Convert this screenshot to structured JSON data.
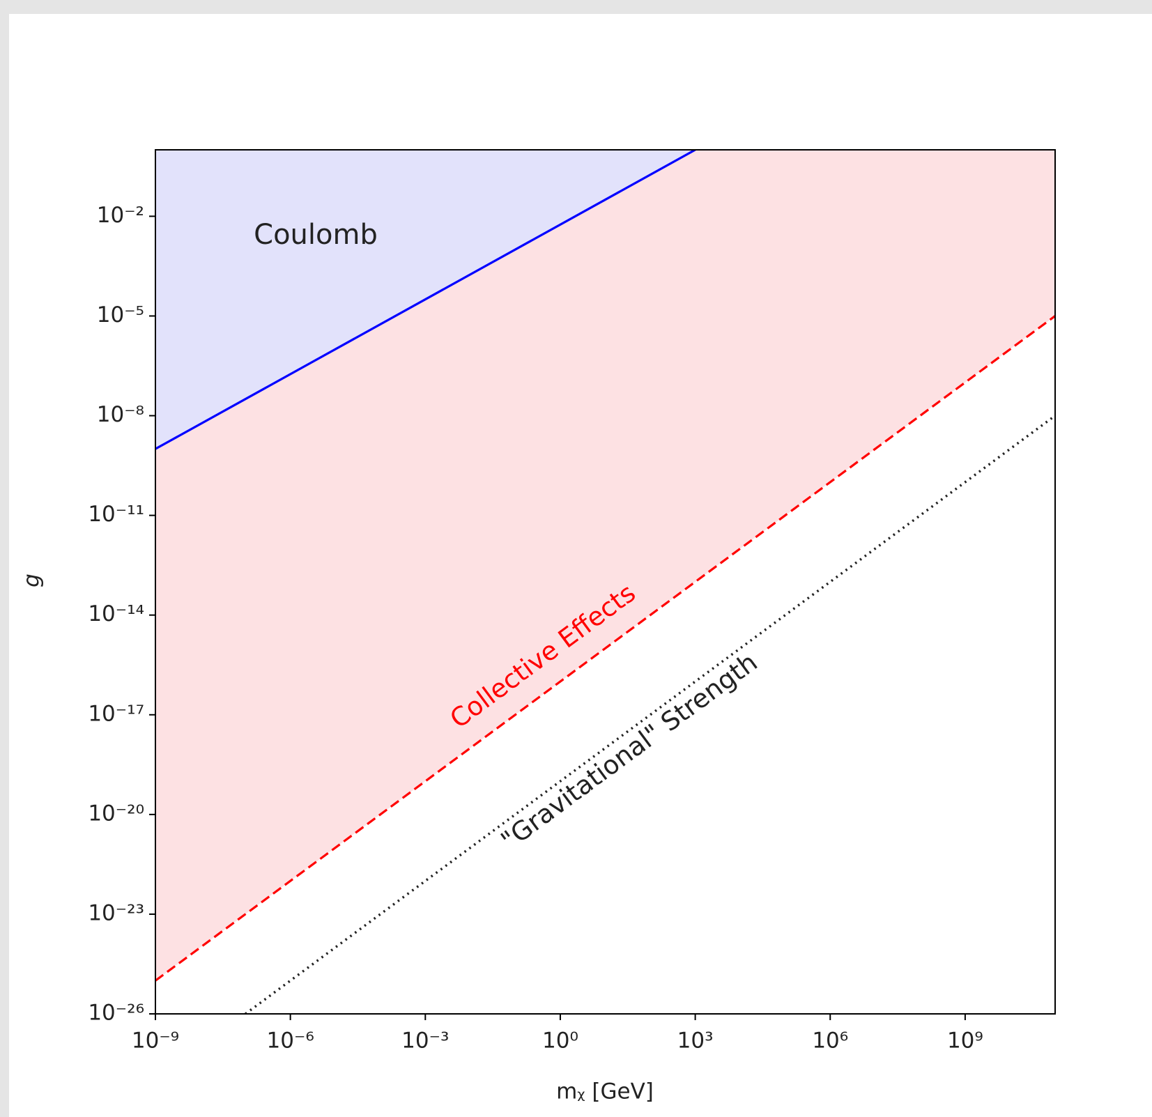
{
  "chart_data": {
    "type": "line",
    "xscale": "log",
    "yscale": "log",
    "xlabel": "mᵪ [GeV]",
    "ylabel": "g",
    "xlim": [
      1e-09,
      100000000000.0
    ],
    "ylim": [
      1e-26,
      1
    ],
    "xticks": [
      {
        "value": 1e-09,
        "label": "10⁻⁹"
      },
      {
        "value": 1e-06,
        "label": "10⁻⁶"
      },
      {
        "value": 0.001,
        "label": "10⁻³"
      },
      {
        "value": 1,
        "label": "10⁰"
      },
      {
        "value": 1000.0,
        "label": "10³"
      },
      {
        "value": 1000000.0,
        "label": "10⁶"
      },
      {
        "value": 1000000000.0,
        "label": "10⁹"
      }
    ],
    "yticks": [
      {
        "value": 1e-26,
        "label": "10⁻²⁶"
      },
      {
        "value": 1e-23,
        "label": "10⁻²³"
      },
      {
        "value": 1e-20,
        "label": "10⁻²⁰"
      },
      {
        "value": 1e-17,
        "label": "10⁻¹⁷"
      },
      {
        "value": 1e-14,
        "label": "10⁻¹⁴"
      },
      {
        "value": 1e-11,
        "label": "10⁻¹¹"
      },
      {
        "value": 1e-08,
        "label": "10⁻⁸"
      },
      {
        "value": 1e-05,
        "label": "10⁻⁵"
      },
      {
        "value": 0.01,
        "label": "10⁻²"
      }
    ],
    "series": [
      {
        "x": [
          1e-09,
          100000000000.0
        ],
        "values": [
          1e-25,
          1e-05
        ],
        "color": "#ff0000",
        "linestyle": "dashed",
        "fill": "#fde1e3"
      },
      {
        "x": [
          1e-09,
          1000.0
        ],
        "values": [
          1e-09,
          1
        ],
        "color": "#0000ff",
        "linestyle": "solid",
        "fill": "#e2e2fb"
      },
      {
        "x": [
          1e-07,
          100000000000.0
        ],
        "values": [
          1e-26,
          1e-08
        ],
        "color": "#222222",
        "linestyle": "dotted"
      }
    ],
    "annotations": [
      {
        "text": "Coulomb",
        "color": "#222222"
      },
      {
        "text": "Collective Effects",
        "color": "#ff0000"
      },
      {
        "text": "\"Gravitational\" Strength",
        "color": "#222222"
      }
    ]
  }
}
